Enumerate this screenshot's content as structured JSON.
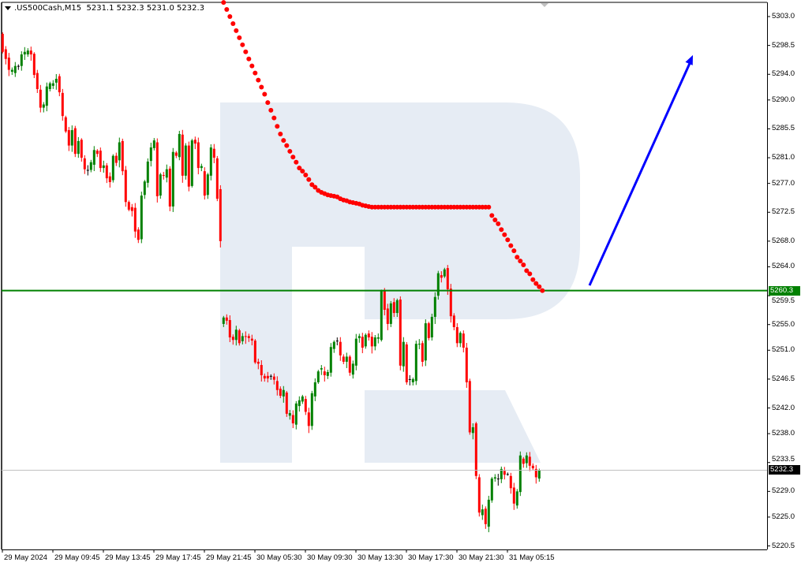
{
  "header": {
    "symbol": ".US500Cash,M15",
    "ohlc": "5231.1 5232.3 5231.0 5232.3"
  },
  "colors": {
    "bull": "#008000",
    "bear": "#ff0000",
    "sar": "#ff0000",
    "level": "#008000",
    "arrow": "#0000ff",
    "watermark": "#e6ecf4",
    "price_line": "#c0c0c0"
  },
  "chart_data": {
    "type": "candlestick",
    "title": ".US500Cash,M15",
    "ylim": [
      5220.5,
      5303.0
    ],
    "grid": false,
    "y_ticks": [
      "5303.0",
      "5298.5",
      "5294.0",
      "5290.0",
      "5285.5",
      "5281.0",
      "5277.0",
      "5272.5",
      "5268.0",
      "5264.0",
      "5259.5",
      "5255.0",
      "5251.0",
      "5246.5",
      "5242.0",
      "5238.0",
      "5233.5",
      "5229.0",
      "5225.0",
      "5220.5"
    ],
    "x_ticks": [
      "29 May 2024",
      "29 May 09:45",
      "29 May 13:45",
      "29 May 17:45",
      "29 May 21:45",
      "30 May 05:30",
      "30 May 09:30",
      "30 May 13:30",
      "30 May 17:30",
      "30 May 21:30",
      "31 May 05:15"
    ],
    "candles_open_close": [
      [
        5300.3,
        5297.5
      ],
      [
        5297.9,
        5296.4
      ],
      [
        5296.6,
        5294.7
      ],
      [
        5294.4,
        5294.7
      ],
      [
        5294.2,
        5295.3
      ],
      [
        5295.3,
        5295.3
      ],
      [
        5295.3,
        5297.1
      ],
      [
        5297.1,
        5297.5
      ],
      [
        5297.1,
        5297.7
      ],
      [
        5297.7,
        5297.1
      ],
      [
        5297.2,
        5293.9
      ],
      [
        5294.2,
        5291.7
      ],
      [
        5291.6,
        5288.8
      ],
      [
        5288.8,
        5289.3
      ],
      [
        5289.1,
        5292.1
      ],
      [
        5291.7,
        5292.6
      ],
      [
        5292.2,
        5292.6
      ],
      [
        5292.7,
        5293.3
      ],
      [
        5293.7,
        5291.2
      ],
      [
        5291.1,
        5287.5
      ],
      [
        5287.3,
        5285.1
      ],
      [
        5285.3,
        5282.9
      ],
      [
        5282.9,
        5285.3
      ],
      [
        5285.6,
        5281.6
      ],
      [
        5281.6,
        5283.6
      ],
      [
        5283.8,
        5281.0
      ],
      [
        5280.9,
        5279.2
      ],
      [
        5279.1,
        5279.1
      ],
      [
        5279.1,
        5280.3
      ],
      [
        5279.9,
        5282.2
      ],
      [
        5282.1,
        5281.6
      ],
      [
        5282.1,
        5279.4
      ],
      [
        5279.4,
        5279.8
      ],
      [
        5279.8,
        5277.8
      ],
      [
        5278.1,
        5277.2
      ],
      [
        5277.5,
        5281.3
      ],
      [
        5281.3,
        5280.2
      ],
      [
        5280.6,
        5283.4
      ],
      [
        5283.6,
        5278.9
      ],
      [
        5279.1,
        5274.1
      ],
      [
        5274.1,
        5272.9
      ],
      [
        5273.3,
        5272.7
      ],
      [
        5273.2,
        5269.5
      ],
      [
        5269.8,
        5268.2
      ],
      [
        5268.3,
        5275.1
      ],
      [
        5275.2,
        5277.3
      ],
      [
        5277.1,
        5280.4
      ],
      [
        5280.5,
        5282.6
      ],
      [
        5282.5,
        5283.7
      ],
      [
        5283.4,
        5275.0
      ],
      [
        5275.1,
        5278.4
      ],
      [
        5278.3,
        5278.2
      ],
      [
        5277.9,
        5279.2
      ],
      [
        5279.3,
        5273.4
      ],
      [
        5273.4,
        5281.9
      ],
      [
        5281.8,
        5281.3
      ],
      [
        5281.1,
        5284.7
      ],
      [
        5284.6,
        5278.2
      ],
      [
        5278.2,
        5282.9
      ],
      [
        5282.9,
        5276.5
      ],
      [
        5276.6,
        5283.7
      ],
      [
        5283.8,
        5283.2
      ],
      [
        5283.4,
        5279.4
      ],
      [
        5279.4,
        5279.7
      ],
      [
        5278.9,
        5275.1
      ],
      [
        5275.2,
        5278.4
      ],
      [
        5278.2,
        5282.6
      ],
      [
        5282.4,
        5281.0
      ],
      [
        5280.9,
        5274.6
      ],
      [
        5276.1,
        5268.0
      ],
      [
        5255.1,
        5256.1
      ],
      [
        5256.1,
        5255.6
      ],
      [
        5255.7,
        5253.0
      ],
      [
        5253.1,
        5252.6
      ],
      [
        5252.6,
        5254.2
      ],
      [
        5254.1,
        5252.1
      ],
      [
        5252.4,
        5253.2
      ],
      [
        5253.2,
        5253.1
      ],
      [
        5253.2,
        5252.9
      ],
      [
        5252.8,
        5252.5
      ],
      [
        5252.5,
        5249.1
      ],
      [
        5249.2,
        5248.9
      ],
      [
        5248.7,
        5247.1
      ],
      [
        5247.0,
        5246.6
      ],
      [
        5247.0,
        5246.6
      ],
      [
        5247.0,
        5247.0
      ],
      [
        5246.9,
        5246.4
      ],
      [
        5246.2,
        5244.8
      ],
      [
        5245.0,
        5243.9
      ],
      [
        5243.8,
        5244.8
      ],
      [
        5244.4,
        5241.1
      ],
      [
        5240.8,
        5241.2
      ],
      [
        5240.9,
        5239.6
      ],
      [
        5239.4,
        5242.7
      ],
      [
        5242.3,
        5243.2
      ],
      [
        5243.0,
        5243.8
      ],
      [
        5243.4,
        5241.4
      ],
      [
        5241.3,
        5239.2
      ],
      [
        5239.2,
        5244.3
      ],
      [
        5243.8,
        5246.0
      ],
      [
        5246.0,
        5247.7
      ],
      [
        5248.0,
        5248.2
      ],
      [
        5247.7,
        5247.1
      ],
      [
        5247.0,
        5247.6
      ],
      [
        5247.5,
        5251.5
      ],
      [
        5251.2,
        5252.3
      ],
      [
        5252.5,
        5252.5
      ],
      [
        5252.3,
        5250.2
      ],
      [
        5250.0,
        5249.2
      ],
      [
        5249.2,
        5250.0
      ],
      [
        5250.0,
        5247.5
      ],
      [
        5247.2,
        5248.9
      ],
      [
        5248.6,
        5252.8
      ],
      [
        5252.9,
        5253.2
      ],
      [
        5253.1,
        5251.4
      ],
      [
        5251.6,
        5253.4
      ],
      [
        5253.6,
        5253.0
      ],
      [
        5253.1,
        5251.6
      ],
      [
        5251.6,
        5253.0
      ],
      [
        5252.8,
        5253.0
      ],
      [
        5252.6,
        5260.2
      ],
      [
        5260.2,
        5257.3
      ],
      [
        5257.5,
        5255.1
      ],
      [
        5255.1,
        5258.3
      ],
      [
        5258.5,
        5256.8
      ],
      [
        5256.8,
        5258.8
      ],
      [
        5258.9,
        5248.6
      ],
      [
        5248.5,
        5252.3
      ],
      [
        5251.9,
        5246.0
      ],
      [
        5246.5,
        5246.5
      ],
      [
        5246.0,
        5246.5
      ],
      [
        5246.2,
        5252.0
      ],
      [
        5251.9,
        5252.0
      ],
      [
        5252.1,
        5249.2
      ],
      [
        5249.4,
        5255.2
      ],
      [
        5255.2,
        5252.9
      ],
      [
        5253.0,
        5256.2
      ],
      [
        5256.2,
        5259.3
      ],
      [
        5259.5,
        5263.0
      ],
      [
        5262.7,
        5262.3
      ],
      [
        5262.5,
        5263.6
      ],
      [
        5263.8,
        5260.5
      ],
      [
        5260.6,
        5256.3
      ],
      [
        5256.4,
        5254.6
      ],
      [
        5254.6,
        5252.1
      ],
      [
        5252.1,
        5253.7
      ],
      [
        5253.6,
        5251.4
      ],
      [
        5251.4,
        5246.0
      ],
      [
        5246.2,
        5238.2
      ],
      [
        5238.1,
        5239.0
      ],
      [
        5239.6,
        5231.4
      ],
      [
        5231.2,
        5225.7
      ],
      [
        5225.3,
        5226.2
      ],
      [
        5226.3,
        5223.9
      ],
      [
        5223.5,
        5227.7
      ],
      [
        5227.6,
        5231.0
      ],
      [
        5231.0,
        5231.2
      ],
      [
        5231.0,
        5231.0
      ],
      [
        5230.9,
        5232.5
      ],
      [
        5232.2,
        5231.6
      ],
      [
        5231.7,
        5231.7
      ],
      [
        5231.4,
        5229.5
      ],
      [
        5229.6,
        5227.1
      ],
      [
        5226.8,
        5229.0
      ],
      [
        5228.9,
        5234.6
      ],
      [
        5234.1,
        5233.3
      ],
      [
        5233.4,
        5234.6
      ],
      [
        5234.4,
        5233.0
      ],
      [
        5233.0,
        5232.6
      ],
      [
        5232.5,
        5231.2
      ],
      [
        5231.0,
        5232.3
      ]
    ],
    "sar_start_candle": 71,
    "sar": [
      5305.2,
      5304.1,
      5303.0,
      5301.9,
      5300.8,
      5299.7,
      5298.6,
      5297.5,
      5296.4,
      5295.3,
      5294.2,
      5293.1,
      5292.0,
      5290.9,
      5289.6,
      5288.4,
      5287.2,
      5285.9,
      5284.7,
      5283.7,
      5282.9,
      5282.0,
      5281.1,
      5280.3,
      5279.4,
      5278.9,
      5278.3,
      5277.6,
      5276.8,
      5276.4,
      5275.9,
      5275.6,
      5275.4,
      5275.2,
      5275.1,
      5275.0,
      5274.9,
      5274.6,
      5274.4,
      5274.3,
      5274.1,
      5274.0,
      5273.9,
      5273.8,
      5273.6,
      5273.5,
      5273.4,
      5273.3,
      5273.3,
      5273.3,
      5273.3,
      5273.3,
      5273.3,
      5273.3,
      5273.3,
      5273.3,
      5273.3,
      5273.3,
      5273.3,
      5273.3,
      5273.3,
      5273.3,
      5273.3,
      5273.3,
      5273.3,
      5273.3,
      5273.3,
      5273.3,
      5273.3,
      5273.3,
      5273.3,
      5273.3,
      5273.3,
      5273.3,
      5273.3,
      5273.3,
      5273.3,
      5273.3,
      5273.3,
      5273.3,
      5273.3,
      5273.3,
      5273.3,
      5273.3,
      5273.3,
      5272.0,
      5271.3,
      5270.7,
      5269.8,
      5269.0,
      5268.2,
      5267.3,
      5266.5,
      5265.5,
      5264.9,
      5264.3,
      5263.4,
      5262.9,
      5262.0,
      5261.4,
      5260.9,
      5260.3
    ],
    "level": {
      "price": 5260.3,
      "label": "5260.3"
    },
    "current_price": {
      "price": 5232.3,
      "label": "5232.3"
    },
    "arrow": {
      "from_price": 5261.1,
      "to_price": 5297.0,
      "direction": "up"
    }
  }
}
